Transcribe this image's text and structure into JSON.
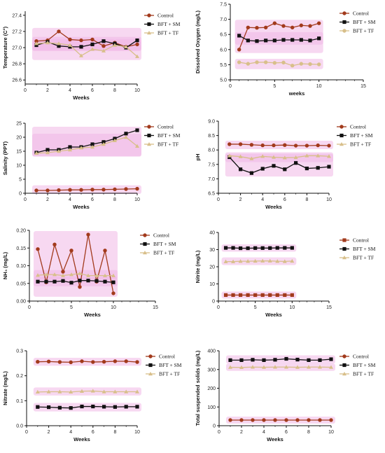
{
  "colors": {
    "control": "#a23a1c",
    "sm": "#111111",
    "tf": "#d8bf8a",
    "highlight": "#f0b8e6",
    "axis": "#111111"
  },
  "chart_data": [
    {
      "type": "line",
      "xlabel": "Weeks",
      "ylabel": "Temperature (C°)",
      "xlim": [
        0,
        10
      ],
      "xticks": [
        0,
        2,
        4,
        6,
        8,
        10
      ],
      "ylim": [
        26.55,
        27.45
      ],
      "yticks": [
        26.6,
        26.8,
        27.0,
        27.2,
        27.4
      ],
      "legend": "top-right",
      "x": [
        1,
        2,
        3,
        4,
        5,
        6,
        7,
        8,
        9,
        10
      ],
      "series": [
        {
          "name": "Control",
          "marker": "circle",
          "values": [
            27.08,
            27.09,
            27.2,
            27.1,
            27.09,
            27.1,
            27.02,
            27.06,
            27.01,
            27.04
          ]
        },
        {
          "name": "BFT + SM",
          "marker": "square",
          "values": [
            27.03,
            27.07,
            27.02,
            27.01,
            27.01,
            27.04,
            27.08,
            27.05,
            27.0,
            27.09
          ]
        },
        {
          "name": "BFT + TF",
          "marker": "triangle",
          "values": [
            27.05,
            27.06,
            27.05,
            27.03,
            26.9,
            26.98,
            26.96,
            27.03,
            27.01,
            26.89
          ]
        }
      ]
    },
    {
      "type": "line",
      "xlabel": "weeks",
      "ylabel": "Dissolved Oxygen (mg/L)",
      "xlim": [
        0,
        15
      ],
      "xticks": [
        0,
        5,
        10,
        15
      ],
      "ylim": [
        5.0,
        7.5
      ],
      "yticks": [
        5.0,
        5.5,
        6.0,
        6.5,
        7.0,
        7.5
      ],
      "legend": "top-right",
      "x": [
        1,
        2,
        3,
        4,
        5,
        6,
        7,
        8,
        9,
        10
      ],
      "series": [
        {
          "name": "Control",
          "marker": "circle",
          "values": [
            6.0,
            6.73,
            6.72,
            6.73,
            6.87,
            6.78,
            6.73,
            6.8,
            6.78,
            6.87
          ]
        },
        {
          "name": "BFT + SM",
          "marker": "square",
          "values": [
            6.46,
            6.3,
            6.28,
            6.3,
            6.3,
            6.32,
            6.32,
            6.32,
            6.3,
            6.37
          ]
        },
        {
          "name": "BFT + TF",
          "marker": "circle",
          "values": [
            5.58,
            5.53,
            5.58,
            5.58,
            5.56,
            5.57,
            5.47,
            5.53,
            5.52,
            5.51
          ]
        }
      ]
    },
    {
      "type": "line",
      "xlabel": "Weeks",
      "ylabel": "Salinity (PPT)",
      "xlim": [
        0,
        10
      ],
      "xticks": [
        0,
        2,
        4,
        6,
        8,
        10
      ],
      "ylim": [
        0,
        25
      ],
      "yticks": [
        0,
        5,
        10,
        15,
        20,
        25
      ],
      "legend": "top-right",
      "x": [
        1,
        2,
        3,
        4,
        5,
        6,
        7,
        8,
        9,
        10
      ],
      "series": [
        {
          "name": "Control",
          "marker": "circle",
          "values": [
            1.0,
            1.0,
            1.1,
            1.2,
            1.2,
            1.3,
            1.3,
            1.4,
            1.5,
            1.6
          ]
        },
        {
          "name": "BFT + SM",
          "marker": "square",
          "values": [
            14.5,
            15.5,
            15.5,
            16.5,
            16.5,
            17.5,
            18.3,
            19.5,
            21.3,
            22.5
          ]
        },
        {
          "name": "BFT + TF",
          "marker": "triangle",
          "values": [
            14.3,
            14.5,
            15.0,
            15.5,
            16.2,
            16.5,
            17.5,
            18.8,
            20.0,
            16.8
          ]
        }
      ]
    },
    {
      "type": "line",
      "xlabel": "Weeks",
      "ylabel": "pH",
      "xlim": [
        0,
        10
      ],
      "xticks": [
        0,
        2,
        4,
        6,
        8,
        10
      ],
      "ylim": [
        6.5,
        9.0
      ],
      "yticks": [
        6.5,
        7.0,
        7.5,
        8.0,
        8.5,
        9.0
      ],
      "legend": "top-right",
      "x": [
        1,
        2,
        3,
        4,
        5,
        6,
        7,
        8,
        9,
        10
      ],
      "series": [
        {
          "name": "Control",
          "marker": "circle",
          "values": [
            8.2,
            8.2,
            8.18,
            8.16,
            8.16,
            8.17,
            8.15,
            8.15,
            8.16,
            8.15
          ]
        },
        {
          "name": "BFT + SM",
          "marker": "square",
          "values": [
            7.75,
            7.33,
            7.2,
            7.35,
            7.45,
            7.33,
            7.55,
            7.36,
            7.38,
            7.42
          ]
        },
        {
          "name": "BFT + TF",
          "marker": "triangle",
          "values": [
            7.8,
            7.77,
            7.7,
            7.78,
            7.75,
            7.73,
            7.74,
            7.8,
            7.8,
            7.78
          ]
        }
      ]
    },
    {
      "type": "line",
      "xlabel": "Weeks",
      "ylabel": "NH₃ (mg/L)",
      "xlim": [
        0,
        15
      ],
      "xticks": [
        0,
        5,
        10,
        15
      ],
      "ylim": [
        0,
        0.2
      ],
      "yticks": [
        0.0,
        0.05,
        0.1,
        0.15,
        0.2
      ],
      "legend": "top-right",
      "x": [
        1,
        2,
        3,
        4,
        5,
        6,
        7,
        8,
        9,
        10
      ],
      "series": [
        {
          "name": "Control",
          "marker": "circle",
          "values": [
            0.147,
            0.053,
            0.16,
            0.083,
            0.143,
            0.04,
            0.188,
            0.055,
            0.143,
            0.022
          ]
        },
        {
          "name": "BFT + SM",
          "marker": "square",
          "values": [
            0.055,
            0.055,
            0.055,
            0.057,
            0.052,
            0.058,
            0.058,
            0.057,
            0.055,
            0.053
          ]
        },
        {
          "name": "BFT + TF",
          "marker": "triangle",
          "values": [
            0.073,
            0.075,
            0.075,
            0.072,
            0.075,
            0.078,
            0.072,
            0.072,
            0.072,
            0.072
          ]
        }
      ]
    },
    {
      "type": "line",
      "xlabel": "Weeks",
      "ylabel": "Nitrite (mg/L)",
      "xlim": [
        0,
        15
      ],
      "xticks": [
        0,
        5,
        10,
        15
      ],
      "ylim": [
        0,
        40
      ],
      "yticks": [
        0,
        10,
        20,
        30,
        40
      ],
      "legend": "top-right",
      "x": [
        1,
        2,
        3,
        4,
        5,
        6,
        7,
        8,
        9,
        10
      ],
      "series": [
        {
          "name": "Control",
          "marker": "square",
          "values": [
            3.5,
            3.5,
            3.5,
            3.5,
            3.5,
            3.5,
            3.5,
            3.5,
            3.5,
            3.5
          ]
        },
        {
          "name": "BFT + SM",
          "marker": "square",
          "values": [
            31.0,
            31.0,
            30.8,
            30.8,
            30.9,
            30.9,
            30.9,
            31.0,
            31.0,
            31.0
          ]
        },
        {
          "name": "BFT + TF",
          "marker": "triangle",
          "values": [
            23.0,
            23.0,
            23.2,
            23.2,
            23.3,
            23.4,
            23.4,
            23.2,
            23.1,
            23.3
          ]
        }
      ]
    },
    {
      "type": "line",
      "xlabel": "Weeks",
      "ylabel": "Nitrate (mg/L)",
      "xlim": [
        0,
        10
      ],
      "xticks": [
        0,
        2,
        4,
        6,
        8,
        10
      ],
      "ylim": [
        0,
        0.3
      ],
      "yticks": [
        0.0,
        0.1,
        0.2,
        0.3
      ],
      "legend": "top-right",
      "x": [
        1,
        2,
        3,
        4,
        5,
        6,
        7,
        8,
        9,
        10
      ],
      "series": [
        {
          "name": "Control",
          "marker": "circle",
          "values": [
            0.256,
            0.257,
            0.255,
            0.254,
            0.258,
            0.255,
            0.256,
            0.258,
            0.258,
            0.255
          ]
        },
        {
          "name": "BFT + SM",
          "marker": "square",
          "values": [
            0.075,
            0.074,
            0.072,
            0.071,
            0.077,
            0.077,
            0.076,
            0.075,
            0.076,
            0.076
          ]
        },
        {
          "name": "BFT + TF",
          "marker": "triangle",
          "values": [
            0.135,
            0.136,
            0.136,
            0.135,
            0.138,
            0.139,
            0.136,
            0.136,
            0.136,
            0.136
          ]
        }
      ]
    },
    {
      "type": "line",
      "xlabel": "Weeks",
      "ylabel": "Total suspended solids (mg/L)",
      "xlim": [
        0,
        10
      ],
      "xticks": [
        0,
        2,
        4,
        6,
        8,
        10
      ],
      "ylim": [
        0,
        400
      ],
      "yticks": [
        0,
        100,
        200,
        300,
        400
      ],
      "legend": "top-right",
      "x": [
        1,
        2,
        3,
        4,
        5,
        6,
        7,
        8,
        9,
        10
      ],
      "series": [
        {
          "name": "Control",
          "marker": "circle",
          "values": [
            30,
            30,
            30,
            30,
            30,
            30,
            30,
            30,
            30,
            30
          ]
        },
        {
          "name": "BFT + SM",
          "marker": "square",
          "values": [
            350,
            350,
            352,
            350,
            352,
            357,
            353,
            350,
            350,
            355
          ]
        },
        {
          "name": "BFT + TF",
          "marker": "triangle",
          "values": [
            312,
            311,
            313,
            312,
            313,
            313,
            312,
            313,
            313,
            312
          ]
        }
      ]
    }
  ]
}
